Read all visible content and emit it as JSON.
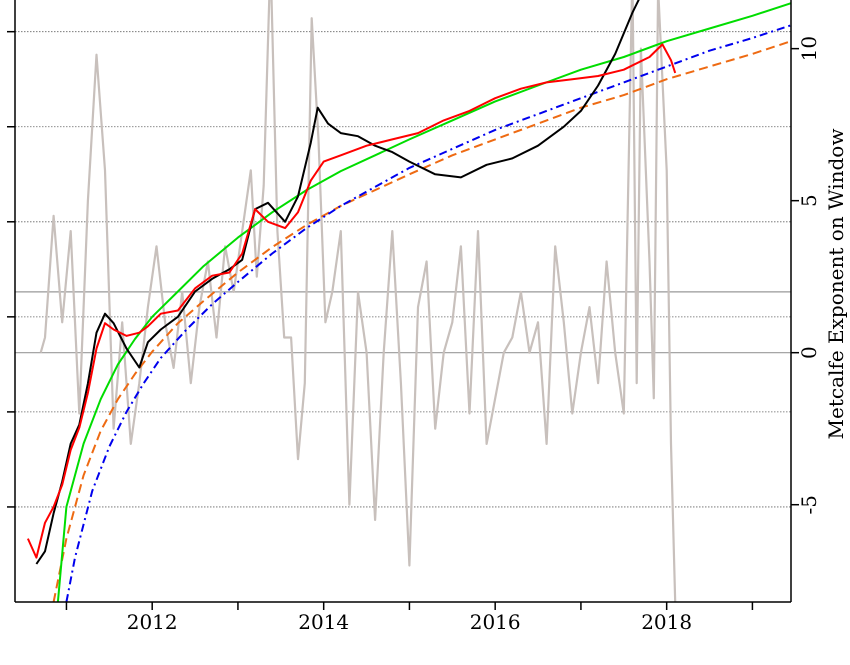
{
  "chart_data": {
    "type": "line",
    "title": "",
    "xlabel": "",
    "ylabel": "",
    "y2label": "Metcalfe Exponent on Window",
    "x_range": [
      2010.4,
      2019.45
    ],
    "y_range": [
      -9,
      10
    ],
    "y2_range": [
      -8.2,
      11.6
    ],
    "x_ticks": [
      2011,
      2013,
      2015,
      2017,
      2019
    ],
    "x_tick_labels": [
      {
        "x": 2012,
        "label": "2012"
      },
      {
        "x": 2014,
        "label": "2014"
      },
      {
        "x": 2016,
        "label": "2016"
      },
      {
        "x": 2018,
        "label": "2018"
      }
    ],
    "y2_tick_labels": [
      {
        "y": 10,
        "label": "10"
      },
      {
        "y": 5,
        "label": "5"
      },
      {
        "y": 0,
        "label": "0"
      },
      {
        "y": -5,
        "label": "-5"
      }
    ],
    "y_gridlines": [
      -6,
      -3,
      0,
      3,
      6,
      9
    ],
    "grid_y2_lines": [
      0,
      2
    ],
    "series": [
      {
        "color": "#000000",
        "x": [
          2010.65,
          2010.75,
          2010.85,
          2010.95,
          2011.05,
          2011.15,
          2011.25,
          2011.35,
          2011.45,
          2011.55,
          2011.7,
          2011.85,
          2011.95,
          2012.1,
          2012.3,
          2012.5,
          2012.7,
          2012.9,
          2013.05,
          2013.2,
          2013.35,
          2013.55,
          2013.7,
          2013.85,
          2013.93,
          2014.05,
          2014.2,
          2014.4,
          2014.6,
          2014.8,
          2015.0,
          2015.3,
          2015.6,
          2015.9,
          2016.2,
          2016.5,
          2016.8,
          2017.0,
          2017.2,
          2017.4,
          2017.6,
          2017.8,
          2017.95,
          2018.05,
          2018.12
        ],
        "y": [
          -7.8,
          -7.4,
          -6.2,
          -5.2,
          -4.0,
          -3.4,
          -2.1,
          -0.5,
          0.1,
          -0.2,
          -1.0,
          -1.6,
          -0.8,
          -0.4,
          0.0,
          0.8,
          1.2,
          1.5,
          1.8,
          3.4,
          3.6,
          3.0,
          3.8,
          5.5,
          6.6,
          6.1,
          5.8,
          5.7,
          5.4,
          5.2,
          4.9,
          4.5,
          4.4,
          4.8,
          5.0,
          5.4,
          6.0,
          6.5,
          7.3,
          8.3,
          9.6,
          10.7,
          11.2,
          11.5,
          11.9
        ]
      },
      {
        "color": "#ff0000",
        "x": [
          2010.55,
          2010.65,
          2010.75,
          2010.85,
          2010.95,
          2011.05,
          2011.15,
          2011.25,
          2011.35,
          2011.45,
          2011.55,
          2011.7,
          2011.85,
          2011.95,
          2012.1,
          2012.3,
          2012.5,
          2012.7,
          2012.9,
          2013.05,
          2013.2,
          2013.35,
          2013.55,
          2013.7,
          2013.85,
          2014.0,
          2014.2,
          2014.5,
          2014.8,
          2015.1,
          2015.4,
          2015.7,
          2016.0,
          2016.3,
          2016.6,
          2016.9,
          2017.2,
          2017.5,
          2017.8,
          2017.95,
          2018.05,
          2018.1
        ],
        "y": [
          -7.0,
          -7.6,
          -6.5,
          -6.0,
          -5.3,
          -4.2,
          -3.5,
          -2.4,
          -1.0,
          -0.2,
          -0.4,
          -0.6,
          -0.5,
          -0.3,
          0.1,
          0.2,
          0.9,
          1.3,
          1.4,
          2.0,
          3.4,
          3.0,
          2.8,
          3.3,
          4.3,
          4.9,
          5.1,
          5.4,
          5.6,
          5.8,
          6.2,
          6.5,
          6.9,
          7.2,
          7.4,
          7.5,
          7.6,
          7.8,
          8.2,
          8.6,
          8.1,
          7.7
        ]
      },
      {
        "color": "#00dd00",
        "dash": "solid",
        "x": [
          2010.9,
          2011.0,
          2011.2,
          2011.4,
          2011.6,
          2011.8,
          2012.0,
          2012.3,
          2012.6,
          2013.0,
          2013.4,
          2013.8,
          2014.2,
          2014.6,
          2015.0,
          2015.5,
          2016.0,
          2016.5,
          2017.0,
          2017.5,
          2018.0,
          2018.5,
          2019.0,
          2019.45
        ],
        "y": [
          -9.0,
          -6.0,
          -4.0,
          -2.6,
          -1.5,
          -0.7,
          0.0,
          0.8,
          1.6,
          2.5,
          3.3,
          4.0,
          4.6,
          5.1,
          5.6,
          6.2,
          6.8,
          7.3,
          7.8,
          8.2,
          8.7,
          9.1,
          9.5,
          9.9
        ]
      },
      {
        "color": "#ee6a12",
        "dash": "dashed",
        "x": [
          2010.85,
          2011.0,
          2011.2,
          2011.4,
          2011.6,
          2011.8,
          2012.0,
          2012.3,
          2012.6,
          2013.0,
          2013.4,
          2013.8,
          2014.2,
          2014.6,
          2015.0,
          2015.5,
          2016.0,
          2016.5,
          2017.0,
          2017.5,
          2018.0,
          2018.5,
          2019.0,
          2019.45
        ],
        "y": [
          -9.0,
          -7.0,
          -5.0,
          -3.6,
          -2.6,
          -1.8,
          -1.1,
          -0.2,
          0.5,
          1.4,
          2.2,
          2.9,
          3.5,
          4.0,
          4.5,
          5.1,
          5.6,
          6.1,
          6.6,
          7.0,
          7.5,
          7.9,
          8.3,
          8.7
        ]
      },
      {
        "color": "#0000ee",
        "dash": "dashdot",
        "x": [
          2011.0,
          2011.1,
          2011.3,
          2011.5,
          2011.7,
          2011.9,
          2012.1,
          2012.4,
          2012.7,
          2013.0,
          2013.4,
          2013.8,
          2014.2,
          2014.6,
          2015.0,
          2015.5,
          2016.0,
          2016.5,
          2017.0,
          2017.5,
          2018.0,
          2018.5,
          2019.0,
          2019.45
        ],
        "y": [
          -9.0,
          -7.6,
          -5.5,
          -4.1,
          -3.0,
          -2.1,
          -1.3,
          -0.4,
          0.4,
          1.1,
          2.0,
          2.8,
          3.5,
          4.1,
          4.7,
          5.3,
          5.9,
          6.4,
          6.9,
          7.4,
          7.9,
          8.4,
          8.8,
          9.2
        ]
      },
      {
        "color": "#c8c0bc",
        "axis": "y2",
        "x": [
          2010.7,
          2010.75,
          2010.85,
          2010.95,
          2011.05,
          2011.15,
          2011.25,
          2011.35,
          2011.45,
          2011.55,
          2011.65,
          2011.75,
          2011.85,
          2011.95,
          2012.05,
          2012.15,
          2012.25,
          2012.35,
          2012.45,
          2012.55,
          2012.65,
          2012.75,
          2012.85,
          2012.95,
          2013.05,
          2013.15,
          2013.22,
          2013.3,
          2013.38,
          2013.46,
          2013.54,
          2013.62,
          2013.7,
          2013.78,
          2013.86,
          2013.94,
          2014.02,
          2014.1,
          2014.2,
          2014.3,
          2014.4,
          2014.5,
          2014.6,
          2014.7,
          2014.8,
          2014.9,
          2015.0,
          2015.1,
          2015.2,
          2015.3,
          2015.4,
          2015.5,
          2015.6,
          2015.7,
          2015.8,
          2015.9,
          2016.0,
          2016.1,
          2016.2,
          2016.3,
          2016.4,
          2016.5,
          2016.6,
          2016.7,
          2016.8,
          2016.9,
          2017.0,
          2017.1,
          2017.2,
          2017.3,
          2017.4,
          2017.5,
          2017.6,
          2017.65,
          2017.7,
          2017.8,
          2017.85,
          2017.9,
          2018.0,
          2018.05,
          2018.1
        ],
        "y": [
          0.0,
          0.5,
          4.5,
          1.0,
          4.0,
          -2.0,
          5.0,
          9.8,
          6.0,
          -2.5,
          1.0,
          -3.0,
          -1.0,
          1.5,
          3.5,
          1.0,
          -0.5,
          2.0,
          -1.0,
          1.5,
          3.0,
          0.5,
          3.5,
          2.0,
          4.0,
          6.0,
          2.5,
          5.5,
          13.0,
          4.0,
          0.5,
          0.5,
          -3.5,
          -1.0,
          11.0,
          7.0,
          1.0,
          2.0,
          4.0,
          -5.0,
          2.0,
          0.0,
          -5.5,
          0.0,
          4.0,
          -1.0,
          -7.0,
          1.5,
          3.0,
          -2.5,
          0.0,
          1.0,
          3.5,
          -2.0,
          4.0,
          -3.0,
          -1.5,
          0.0,
          0.5,
          2.0,
          0.0,
          1.0,
          -3.0,
          3.5,
          1.0,
          -2.0,
          0.0,
          1.5,
          -1.0,
          3.0,
          0.0,
          -2.0,
          12.5,
          -1.0,
          10.0,
          3.0,
          -1.5,
          12.0,
          6.0,
          -3.0,
          -8.2
        ]
      }
    ]
  }
}
